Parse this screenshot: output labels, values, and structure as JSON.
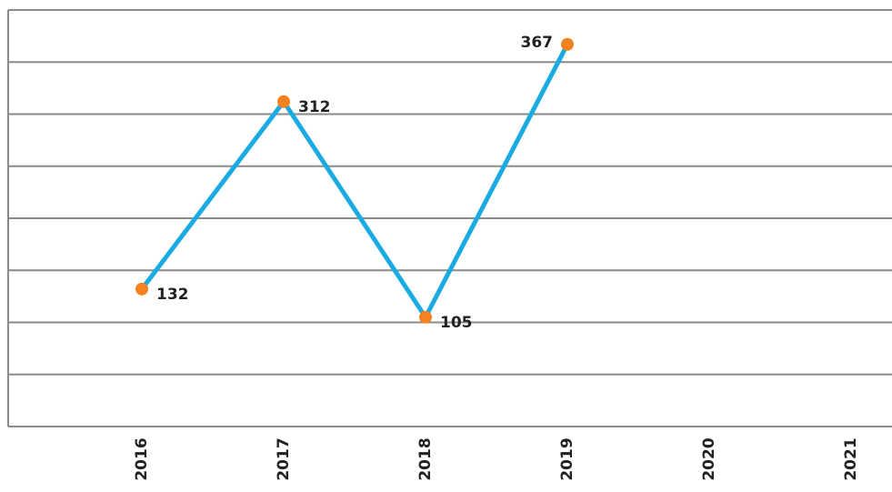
{
  "chart_data": {
    "type": "line",
    "categories": [
      "2016",
      "2017",
      "2018",
      "2019",
      "2020",
      "2021"
    ],
    "series": [
      {
        "name": null,
        "color": "#1aabe2",
        "marker_color": "#f5821f",
        "values": [
          132,
          312,
          105,
          367,
          null,
          null
        ]
      }
    ],
    "ylim": [
      0,
      400
    ],
    "yticks": [
      0,
      50,
      100,
      150,
      200,
      250,
      300,
      350,
      400
    ],
    "grid": true
  }
}
